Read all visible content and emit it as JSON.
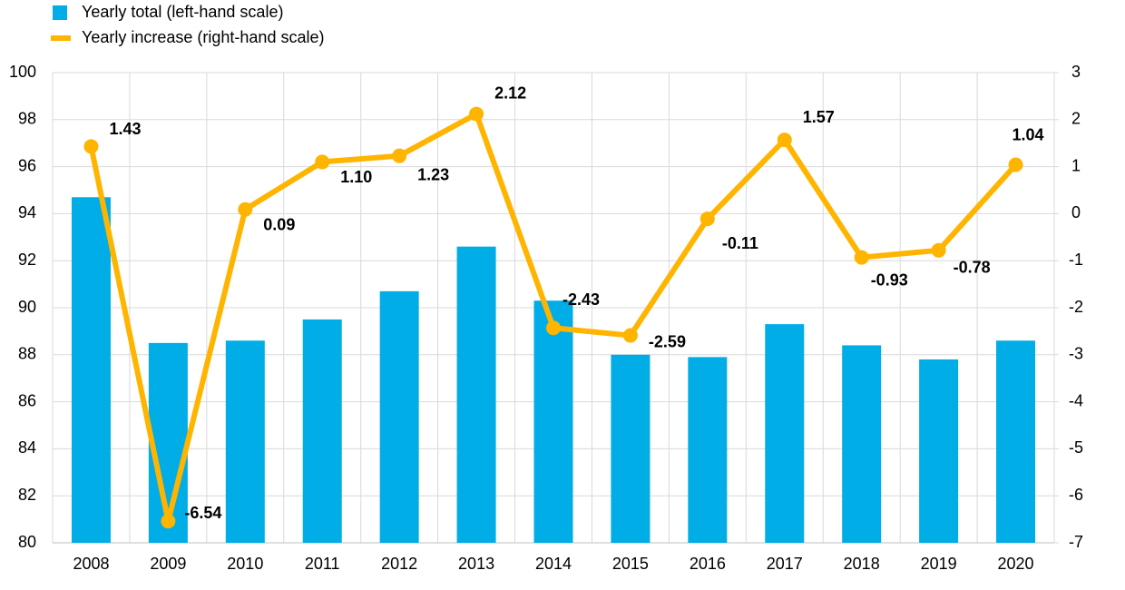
{
  "chart_data": {
    "type": "bar",
    "categories": [
      "2008",
      "2009",
      "2010",
      "2011",
      "2012",
      "2013",
      "2014",
      "2015",
      "2016",
      "2017",
      "2018",
      "2019",
      "2020"
    ],
    "series": [
      {
        "name": "Yearly total (left-hand scale)",
        "type": "bar",
        "color": "#00ade6",
        "values": [
          94.7,
          88.5,
          88.6,
          89.5,
          90.7,
          92.6,
          90.3,
          88.0,
          87.9,
          89.3,
          88.4,
          87.8,
          88.6
        ]
      },
      {
        "name": "Yearly increase (right-hand scale)",
        "type": "line",
        "axis": "y2",
        "color": "#ffb400",
        "values": [
          1.43,
          -6.54,
          0.09,
          1.1,
          1.23,
          2.12,
          -2.43,
          -2.59,
          -0.11,
          1.57,
          -0.93,
          -0.78,
          1.04
        ],
        "value_labels": [
          "1.43",
          "-6.54",
          "0.09",
          "1.10",
          "1.23",
          "2.12",
          "-2.43",
          "-2.59",
          "-0.11",
          "1.57",
          "-0.93",
          "-0.78",
          "1.04"
        ]
      }
    ],
    "ylim": [
      80,
      100
    ],
    "yticks": [
      80,
      82,
      84,
      86,
      88,
      90,
      92,
      94,
      96,
      98,
      100
    ],
    "y2lim": [
      -7,
      3
    ],
    "y2ticks": [
      -7,
      -6,
      -5,
      -4,
      -3,
      -2,
      -1,
      0,
      1,
      2,
      3
    ],
    "grid": true,
    "legend": "top-left"
  }
}
